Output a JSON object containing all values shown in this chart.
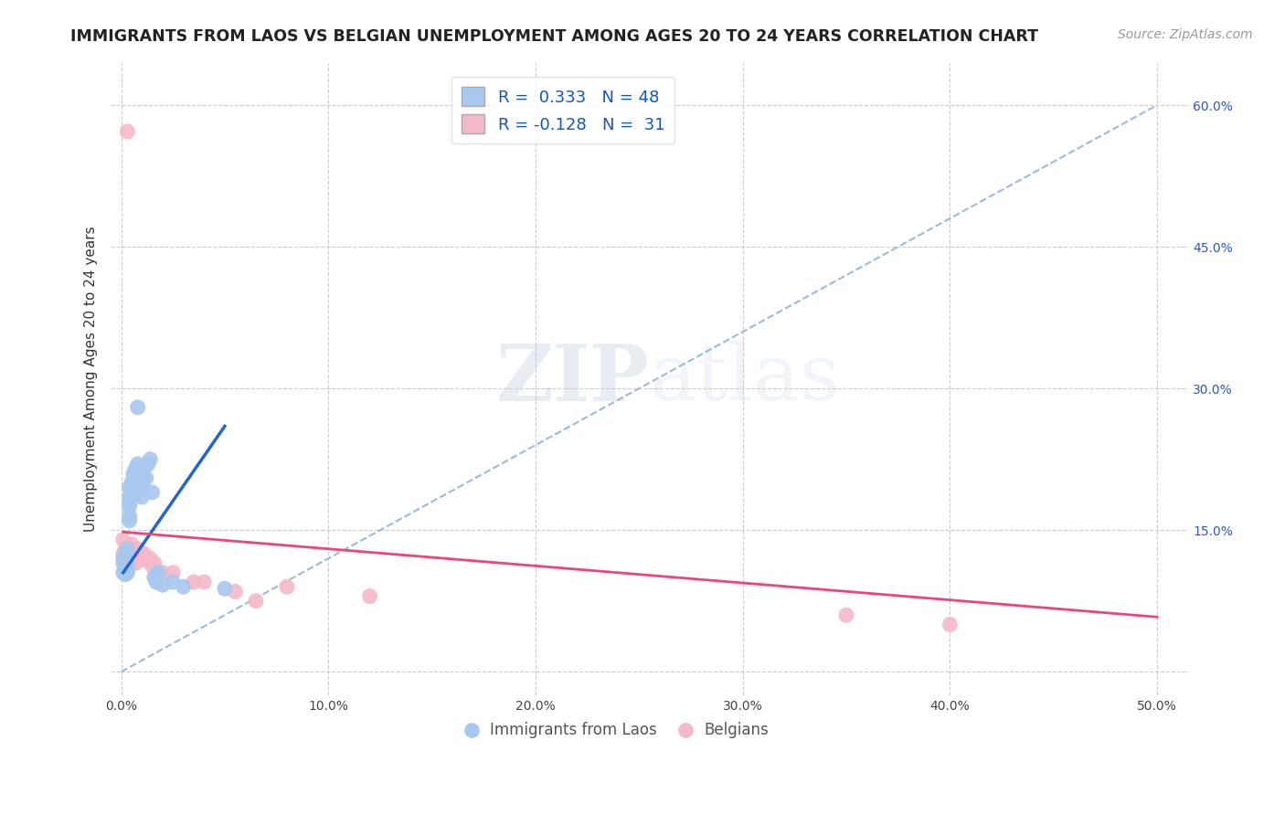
{
  "title": "IMMIGRANTS FROM LAOS VS BELGIAN UNEMPLOYMENT AMONG AGES 20 TO 24 YEARS CORRELATION CHART",
  "source": "Source: ZipAtlas.com",
  "ylabel": "Unemployment Among Ages 20 to 24 years",
  "x_ticks": [
    0.0,
    0.1,
    0.2,
    0.3,
    0.4,
    0.5
  ],
  "x_tick_labels": [
    "0.0%",
    "10.0%",
    "20.0%",
    "30.0%",
    "40.0%",
    "50.0%"
  ],
  "y_ticks": [
    0.0,
    0.15,
    0.3,
    0.45,
    0.6
  ],
  "y_tick_labels": [
    "",
    "15.0%",
    "30.0%",
    "45.0%",
    "60.0%"
  ],
  "xlim": [
    -0.005,
    0.515
  ],
  "ylim": [
    -0.025,
    0.645
  ],
  "legend_labels": [
    "Immigrants from Laos",
    "Belgians"
  ],
  "R_blue": 0.333,
  "N_blue": 48,
  "R_pink": -0.128,
  "N_pink": 31,
  "blue_color": "#A8C8F0",
  "pink_color": "#F5B8C8",
  "blue_line_color": "#2266CC",
  "pink_line_color": "#EE4477",
  "dash_line_color": "#99BBDD",
  "watermark_zip": "ZIP",
  "watermark_atlas": "atlas",
  "title_fontsize": 12.5,
  "source_fontsize": 10,
  "axis_label_fontsize": 11,
  "tick_fontsize": 10,
  "blue_scatter_x": [
    0.001,
    0.001,
    0.001,
    0.002,
    0.002,
    0.002,
    0.002,
    0.003,
    0.003,
    0.003,
    0.003,
    0.003,
    0.004,
    0.004,
    0.004,
    0.004,
    0.004,
    0.004,
    0.005,
    0.005,
    0.005,
    0.005,
    0.006,
    0.006,
    0.006,
    0.006,
    0.007,
    0.007,
    0.007,
    0.008,
    0.008,
    0.009,
    0.009,
    0.01,
    0.01,
    0.01,
    0.011,
    0.012,
    0.013,
    0.014,
    0.015,
    0.016,
    0.017,
    0.018,
    0.02,
    0.025,
    0.03,
    0.05
  ],
  "blue_scatter_y": [
    0.12,
    0.115,
    0.105,
    0.125,
    0.11,
    0.108,
    0.103,
    0.13,
    0.12,
    0.112,
    0.108,
    0.105,
    0.195,
    0.185,
    0.18,
    0.175,
    0.165,
    0.16,
    0.2,
    0.195,
    0.19,
    0.185,
    0.21,
    0.205,
    0.195,
    0.185,
    0.215,
    0.205,
    0.2,
    0.28,
    0.22,
    0.205,
    0.198,
    0.205,
    0.195,
    0.185,
    0.215,
    0.205,
    0.22,
    0.225,
    0.19,
    0.1,
    0.095,
    0.105,
    0.092,
    0.095,
    0.09,
    0.088
  ],
  "pink_scatter_x": [
    0.001,
    0.001,
    0.002,
    0.003,
    0.003,
    0.004,
    0.004,
    0.005,
    0.005,
    0.006,
    0.006,
    0.007,
    0.007,
    0.008,
    0.009,
    0.01,
    0.011,
    0.012,
    0.014,
    0.015,
    0.016,
    0.02,
    0.025,
    0.035,
    0.04,
    0.055,
    0.065,
    0.08,
    0.12,
    0.35,
    0.4
  ],
  "pink_scatter_y": [
    0.14,
    0.125,
    0.13,
    0.572,
    0.125,
    0.13,
    0.12,
    0.135,
    0.125,
    0.13,
    0.12,
    0.125,
    0.115,
    0.13,
    0.125,
    0.12,
    0.125,
    0.118,
    0.12,
    0.112,
    0.115,
    0.105,
    0.105,
    0.095,
    0.095,
    0.085,
    0.075,
    0.09,
    0.08,
    0.06,
    0.05
  ],
  "blue_line_x": [
    0.001,
    0.05
  ],
  "blue_line_y": [
    0.105,
    0.26
  ],
  "pink_line_x": [
    0.001,
    0.5
  ],
  "pink_line_y": [
    0.148,
    0.058
  ],
  "dash_line_x": [
    0.0,
    0.5
  ],
  "dash_line_y": [
    0.0,
    0.6
  ]
}
